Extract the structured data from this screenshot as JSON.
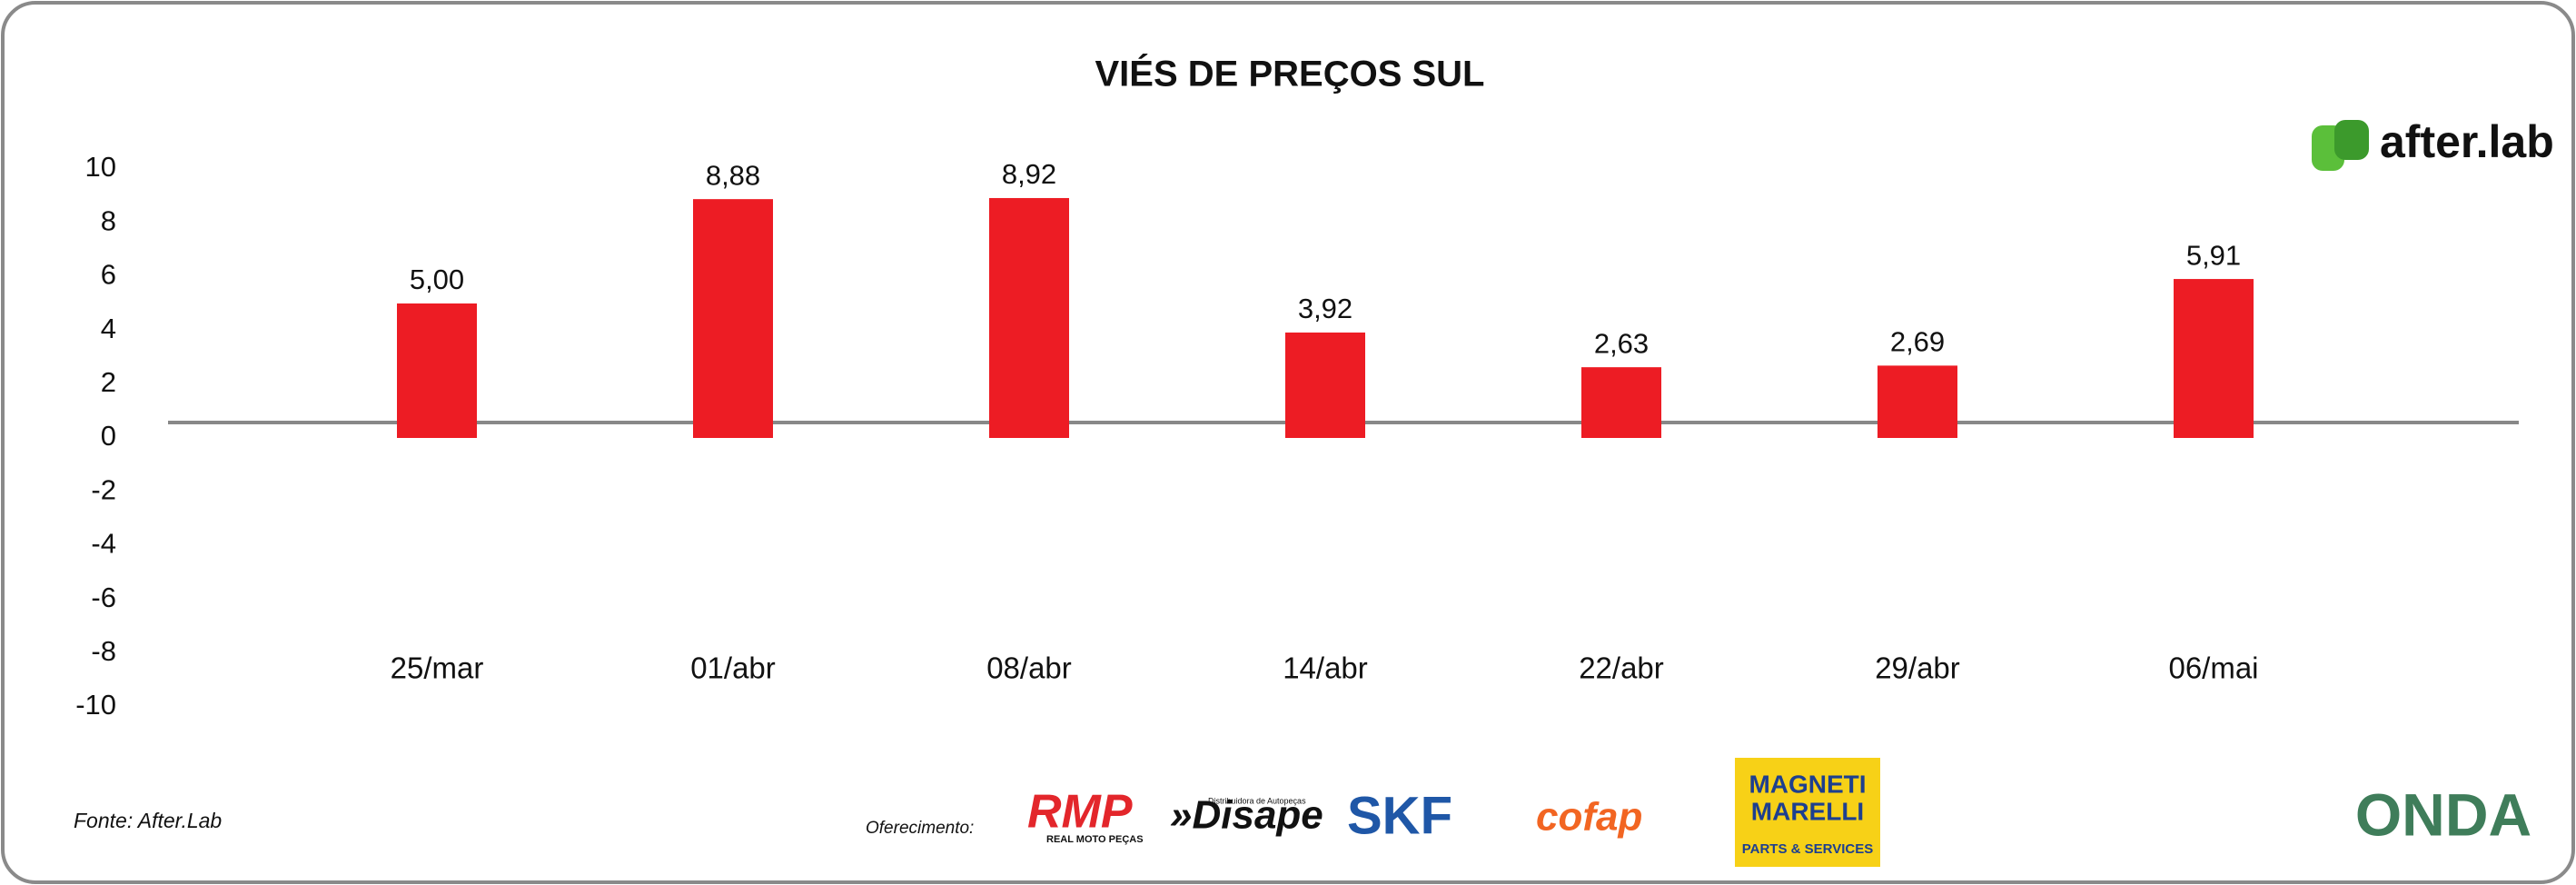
{
  "chart_data": {
    "type": "bar",
    "title": "VIÉS DE PREÇOS SUL",
    "categories": [
      "25/mar",
      "01/abr",
      "08/abr",
      "14/abr",
      "22/abr",
      "29/abr",
      "06/mai"
    ],
    "values": [
      5.0,
      8.88,
      8.92,
      3.92,
      2.63,
      2.69,
      5.91
    ],
    "value_labels": [
      "5,00",
      "8,88",
      "8,92",
      "3,92",
      "2,63",
      "2,69",
      "5,91"
    ],
    "color": "#ed1c24",
    "ylim": [
      -10,
      10
    ],
    "yticks": [
      -10,
      -8,
      -6,
      -4,
      -2,
      0,
      2,
      4,
      6,
      8,
      10
    ],
    "grid": false
  },
  "source": "Fonte: After.Lab",
  "sponsor_label": "Oferecimento:",
  "logos": {
    "afterlab": "after.lab",
    "rmp": "RMP",
    "rmp_sub": "REAL MOTO PEÇAS",
    "disape": "»Disape",
    "disape_sub": "Distribuidora de Autopeças",
    "skf": "SKF",
    "cofap": "cofap",
    "magneti": "MAGNETI",
    "marelli": "MARELLI",
    "magneti_sub": "PARTS & SERVICES",
    "onda": "ONDA"
  }
}
